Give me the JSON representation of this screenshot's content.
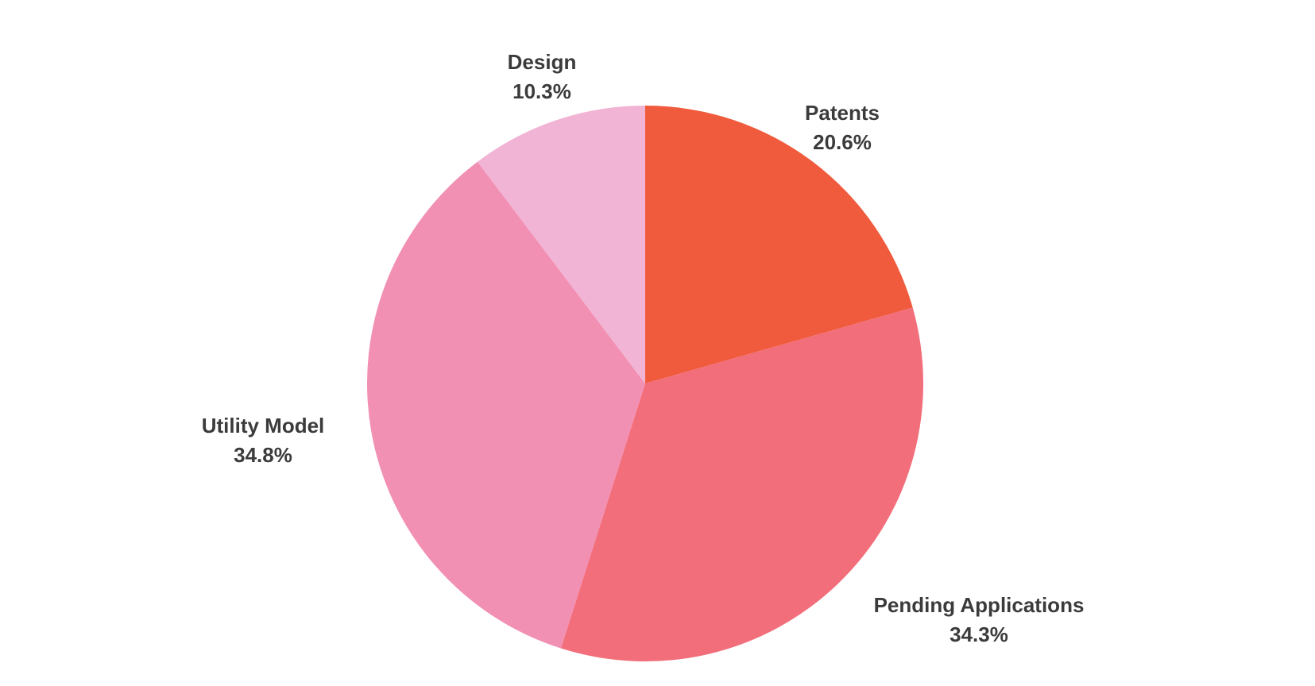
{
  "chart_data": {
    "type": "pie",
    "title": "",
    "legend_position": "none",
    "labels_outside": true,
    "start_angle_deg": 0,
    "direction": "clockwise",
    "unit": "%",
    "categories": [
      "Patents",
      "Pending Applications",
      "Utility Model",
      "Design"
    ],
    "values": [
      20.6,
      34.3,
      34.8,
      10.3
    ],
    "slices": [
      {
        "label": "Patents",
        "value": 20.6,
        "pct_label": "20.6%",
        "color": "#F05B3D"
      },
      {
        "label": "Pending Applications",
        "value": 34.3,
        "pct_label": "34.3%",
        "color": "#F26E7A"
      },
      {
        "label": "Utility Model",
        "value": 34.8,
        "pct_label": "34.8%",
        "color": "#F290B4"
      },
      {
        "label": "Design",
        "value": 10.3,
        "pct_label": "10.3%",
        "color": "#F2B4D4"
      }
    ],
    "label_text_color": "#3b3b3b",
    "background_color": "#ffffff"
  }
}
